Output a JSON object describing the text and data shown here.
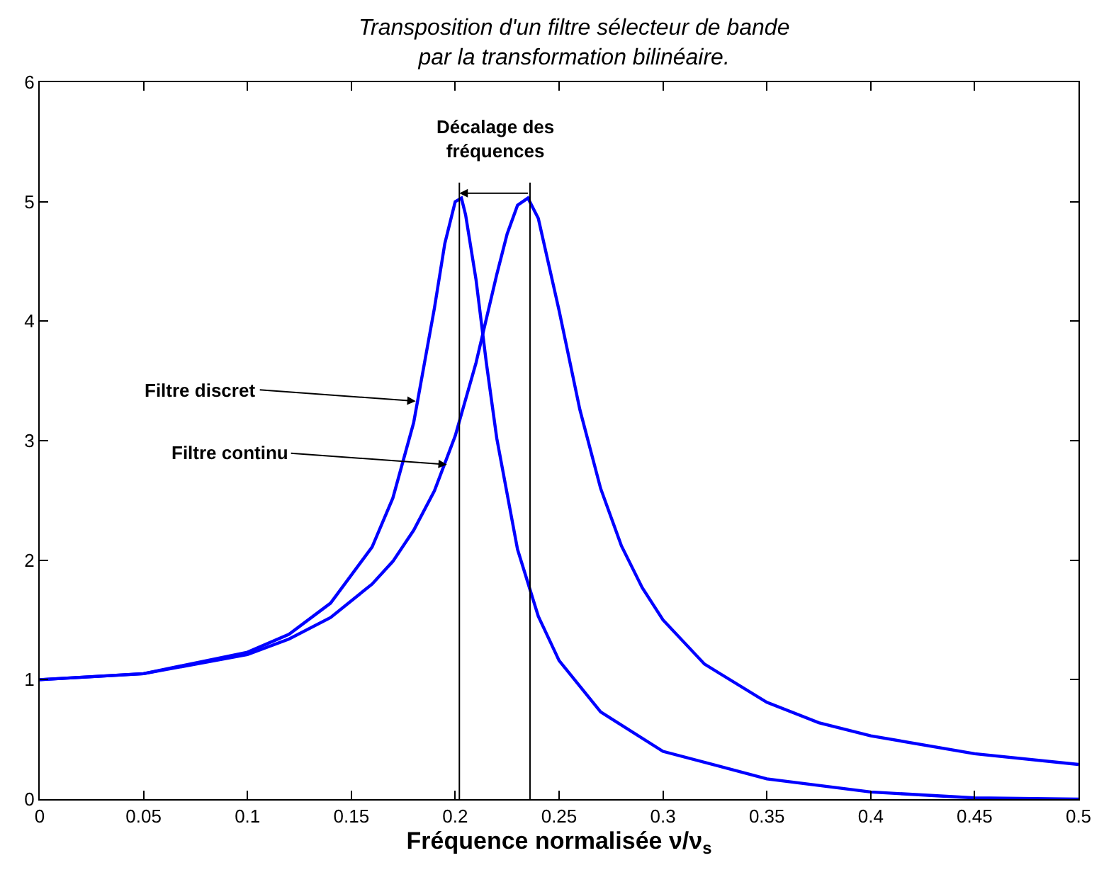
{
  "chart_data": {
    "type": "line",
    "title": "Transposition d'un filtre sélecteur de bande\npar la transformation bilinéaire.",
    "xlabel": "Fréquence normalisée ν/ν$_{s}$",
    "xlim": [
      0,
      0.5
    ],
    "ylim": [
      0,
      6
    ],
    "xticks": [
      0,
      0.05,
      0.1,
      0.15,
      0.2,
      0.25,
      0.3,
      0.35,
      0.4,
      0.45,
      0.5
    ],
    "yticks": [
      0,
      1,
      2,
      3,
      4,
      5,
      6
    ],
    "grid": false,
    "marker": "none",
    "line_style": "solid",
    "series": [
      {
        "color": "#0000ff",
        "x": [
          0,
          0.05,
          0.1,
          0.12,
          0.14,
          0.16,
          0.17,
          0.18,
          0.19,
          0.195,
          0.2,
          0.203,
          0.205,
          0.21,
          0.215,
          0.22,
          0.23,
          0.24,
          0.25,
          0.27,
          0.3,
          0.35,
          0.4,
          0.45,
          0.5
        ],
        "values": [
          1,
          1.05,
          1.23,
          1.38,
          1.64,
          2.11,
          2.52,
          3.15,
          4.11,
          4.65,
          5,
          5.03,
          4.89,
          4.35,
          3.65,
          3.02,
          2.09,
          1.53,
          1.16,
          0.73,
          0.4,
          0.17,
          0.06,
          0.01,
          0
        ]
      },
      {
        "color": "#0000ff",
        "x": [
          0,
          0.05,
          0.1,
          0.12,
          0.14,
          0.16,
          0.17,
          0.18,
          0.19,
          0.2,
          0.21,
          0.22,
          0.225,
          0.23,
          0.235,
          0.24,
          0.25,
          0.26,
          0.27,
          0.28,
          0.29,
          0.3,
          0.32,
          0.35,
          0.375,
          0.4,
          0.45,
          0.5
        ],
        "values": [
          1,
          1.05,
          1.21,
          1.34,
          1.52,
          1.8,
          1.99,
          2.25,
          2.58,
          3.04,
          3.65,
          4.39,
          4.73,
          4.97,
          5.03,
          4.86,
          4.09,
          3.26,
          2.6,
          2.12,
          1.77,
          1.5,
          1.13,
          0.81,
          0.64,
          0.53,
          0.38,
          0.29
        ]
      }
    ],
    "ref_lines": [
      {
        "axis": "x",
        "value": 0.202,
        "color": "#000000"
      },
      {
        "axis": "x",
        "value": 0.236,
        "color": "#000000"
      }
    ],
    "annotations": [
      "Décalage des\nfréquences",
      {
        "text": "Filtre discret",
        "x": 0.181,
        "y": 3.33
      },
      {
        "text": "Filtre continu",
        "x": 0.196,
        "y": 2.8
      }
    ]
  }
}
